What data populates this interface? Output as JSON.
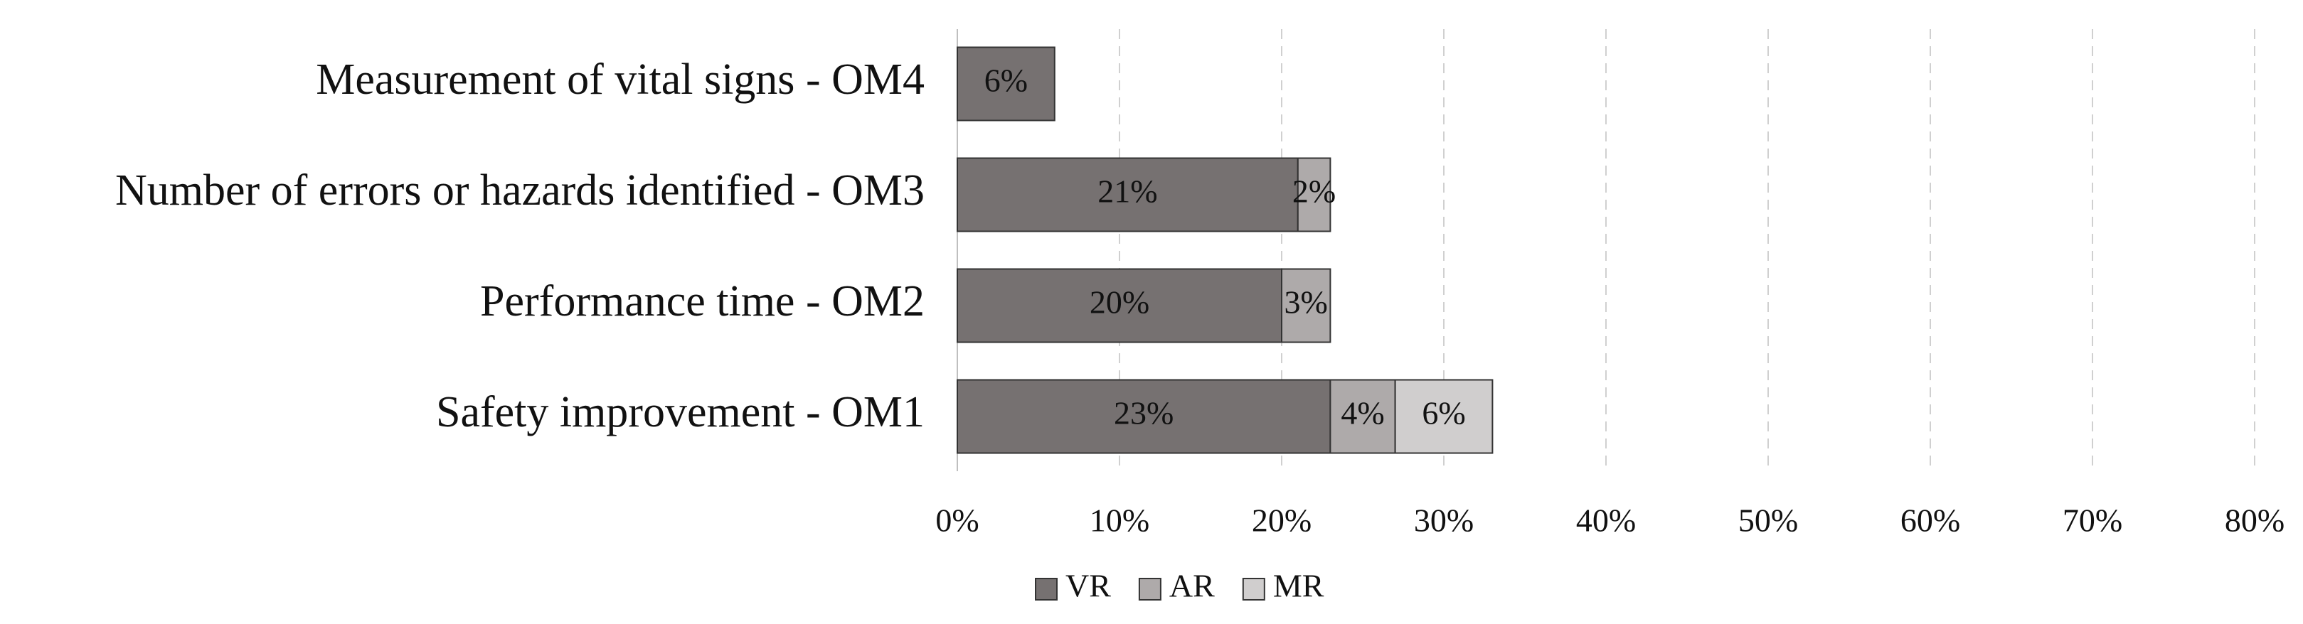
{
  "chart_data": {
    "type": "stacked-bar-horizontal",
    "categories": [
      "Safety improvement - OM1",
      "Performance time - OM2",
      "Number of errors or hazards identified - OM3",
      "Measurement of vital signs - OM4"
    ],
    "series": [
      {
        "name": "VR",
        "color": "#767171",
        "values": [
          23,
          20,
          21,
          6
        ],
        "value_labels": [
          "23%",
          "20%",
          "21%",
          "6%"
        ]
      },
      {
        "name": "AR",
        "color": "#aeaaaa",
        "values": [
          4,
          3,
          2,
          null
        ],
        "value_labels": [
          "4%",
          "3%",
          "2%",
          null
        ]
      },
      {
        "name": "MR",
        "color": "#d0cece",
        "values": [
          6,
          null,
          null,
          null
        ],
        "value_labels": [
          "6%",
          null,
          null,
          null
        ]
      }
    ],
    "xlim": [
      0,
      80
    ],
    "xticks": [
      {
        "value": 0,
        "label": "0%"
      },
      {
        "value": 10,
        "label": "10%"
      },
      {
        "value": 20,
        "label": "20%"
      },
      {
        "value": 30,
        "label": "30%"
      },
      {
        "value": 40,
        "label": "40%"
      },
      {
        "value": 50,
        "label": "50%"
      },
      {
        "value": 60,
        "label": "60%"
      },
      {
        "value": 70,
        "label": "70%"
      },
      {
        "value": 80,
        "label": "80%"
      }
    ],
    "grid": true,
    "legend": "bottom"
  }
}
